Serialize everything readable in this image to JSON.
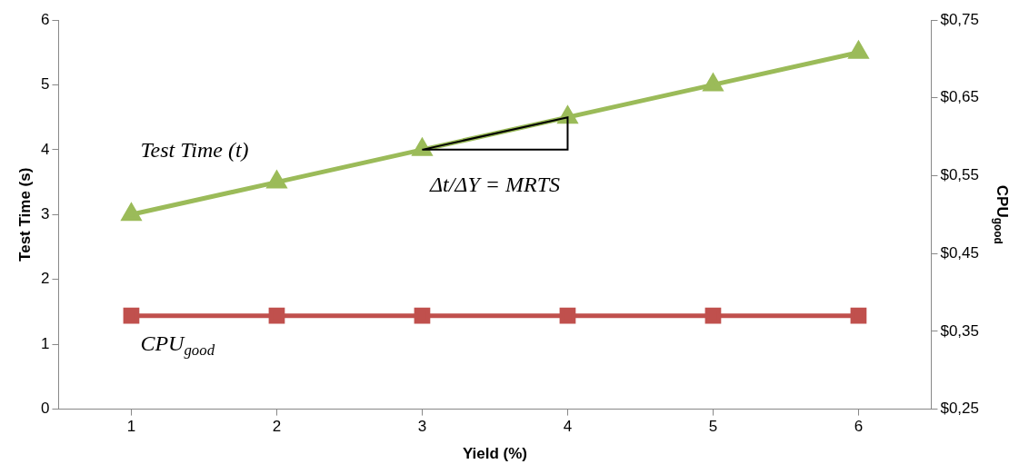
{
  "chart_data": {
    "type": "line",
    "categories": [
      "1",
      "2",
      "3",
      "4",
      "5",
      "6"
    ],
    "series": [
      {
        "name": "Test Time (t)",
        "color": "#9bbb59",
        "marker": "triangle",
        "values": [
          3,
          3.5,
          4,
          4.5,
          5,
          5.5
        ]
      },
      {
        "name": "CPU$_{good}$",
        "color": "#c0504d",
        "marker": "square",
        "axis": "y2",
        "values": [
          0.37,
          0.37,
          0.37,
          0.37,
          0.37,
          0.37
        ]
      }
    ],
    "xlabel": "Yield (%)",
    "ylabel": "Test Time (s)",
    "y2label": "CPU$_{good}$",
    "ylim": [
      0,
      6
    ],
    "yticks": [
      0,
      1,
      2,
      3,
      4,
      5,
      6
    ],
    "y2lim": [
      0.25,
      0.75
    ],
    "y2ticks": [
      {
        "value": 0.25,
        "label": "$0,25"
      },
      {
        "value": 0.35,
        "label": "$0,35"
      },
      {
        "value": 0.45,
        "label": "$0,45"
      },
      {
        "value": 0.55,
        "label": "$0,55"
      },
      {
        "value": 0.65,
        "label": "$0,65"
      },
      {
        "value": 0.75,
        "label": "$0,75"
      }
    ],
    "annotations": [
      "Δt/ΔY = MRTS"
    ],
    "grid": false,
    "legend": false
  }
}
